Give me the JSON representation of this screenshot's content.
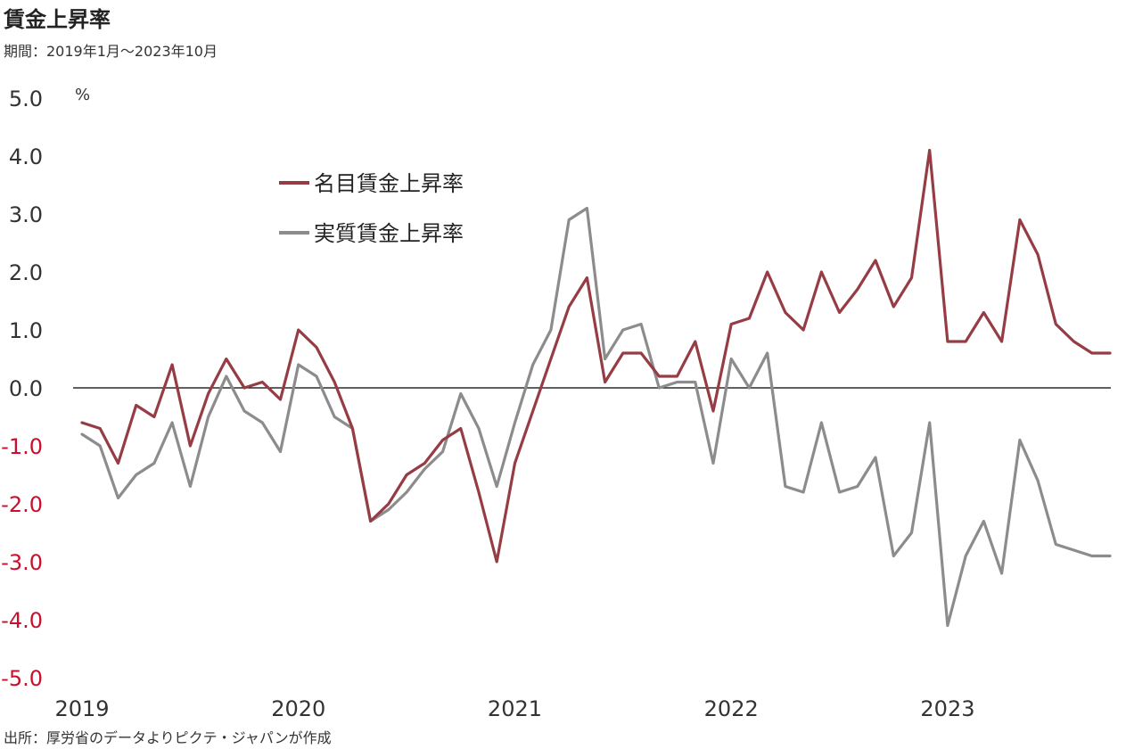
{
  "chart_data": {
    "type": "line",
    "title": "賃金上昇率",
    "subtitle": "期間：2019年1月～2023年10月",
    "source": "出所：厚労省のデータよりピクテ・ジャパンが作成",
    "y_unit": "%",
    "ylim": [
      -5,
      5
    ],
    "y_ticks": [
      "5.0",
      "4.0",
      "3.0",
      "2.0",
      "1.0",
      "0.0",
      "-1.0",
      "-2.0",
      "-3.0",
      "-4.0",
      "-5.0"
    ],
    "x_ticks": [
      "2019",
      "2020",
      "2021",
      "2022",
      "2023"
    ],
    "negative_tick_color": "#c8102e",
    "legend_placement": "top-left",
    "series": [
      {
        "name": "名目賃金上昇率",
        "color": "#963c44",
        "values": [
          -0.6,
          -0.7,
          -1.3,
          -0.3,
          -0.5,
          0.4,
          -1.0,
          -0.1,
          0.5,
          0.0,
          0.1,
          -0.2,
          1.0,
          0.7,
          0.1,
          -0.7,
          -2.3,
          -2.0,
          -1.5,
          -1.3,
          -0.9,
          -0.7,
          -1.8,
          -3.0,
          -1.3,
          -0.4,
          0.5,
          1.4,
          1.9,
          0.1,
          0.6,
          0.6,
          0.2,
          0.2,
          0.8,
          -0.4,
          1.1,
          1.2,
          2.0,
          1.3,
          1.0,
          2.0,
          1.3,
          1.7,
          2.2,
          1.4,
          1.9,
          4.1,
          0.8,
          0.8,
          1.3,
          0.8,
          2.9,
          2.3,
          1.1,
          0.8,
          0.6,
          0.6
        ]
      },
      {
        "name": "実質賃金上昇率",
        "color": "#8c8c8c",
        "values": [
          -0.8,
          -1.0,
          -1.9,
          -1.5,
          -1.3,
          -0.6,
          -1.7,
          -0.5,
          0.2,
          -0.4,
          -0.6,
          -1.1,
          0.4,
          0.2,
          -0.5,
          -0.7,
          -2.3,
          -2.1,
          -1.8,
          -1.4,
          -1.1,
          -0.1,
          -0.7,
          -1.7,
          -0.6,
          0.4,
          1.0,
          2.9,
          3.1,
          0.5,
          1.0,
          1.1,
          0.0,
          0.1,
          0.1,
          -1.3,
          0.5,
          0.0,
          0.6,
          -1.7,
          -1.8,
          -0.6,
          -1.8,
          -1.7,
          -1.2,
          -2.9,
          -2.5,
          -0.6,
          -4.1,
          -2.9,
          -2.3,
          -3.2,
          -0.9,
          -1.6,
          -2.7,
          -2.8,
          -2.9,
          -2.9
        ]
      }
    ]
  }
}
